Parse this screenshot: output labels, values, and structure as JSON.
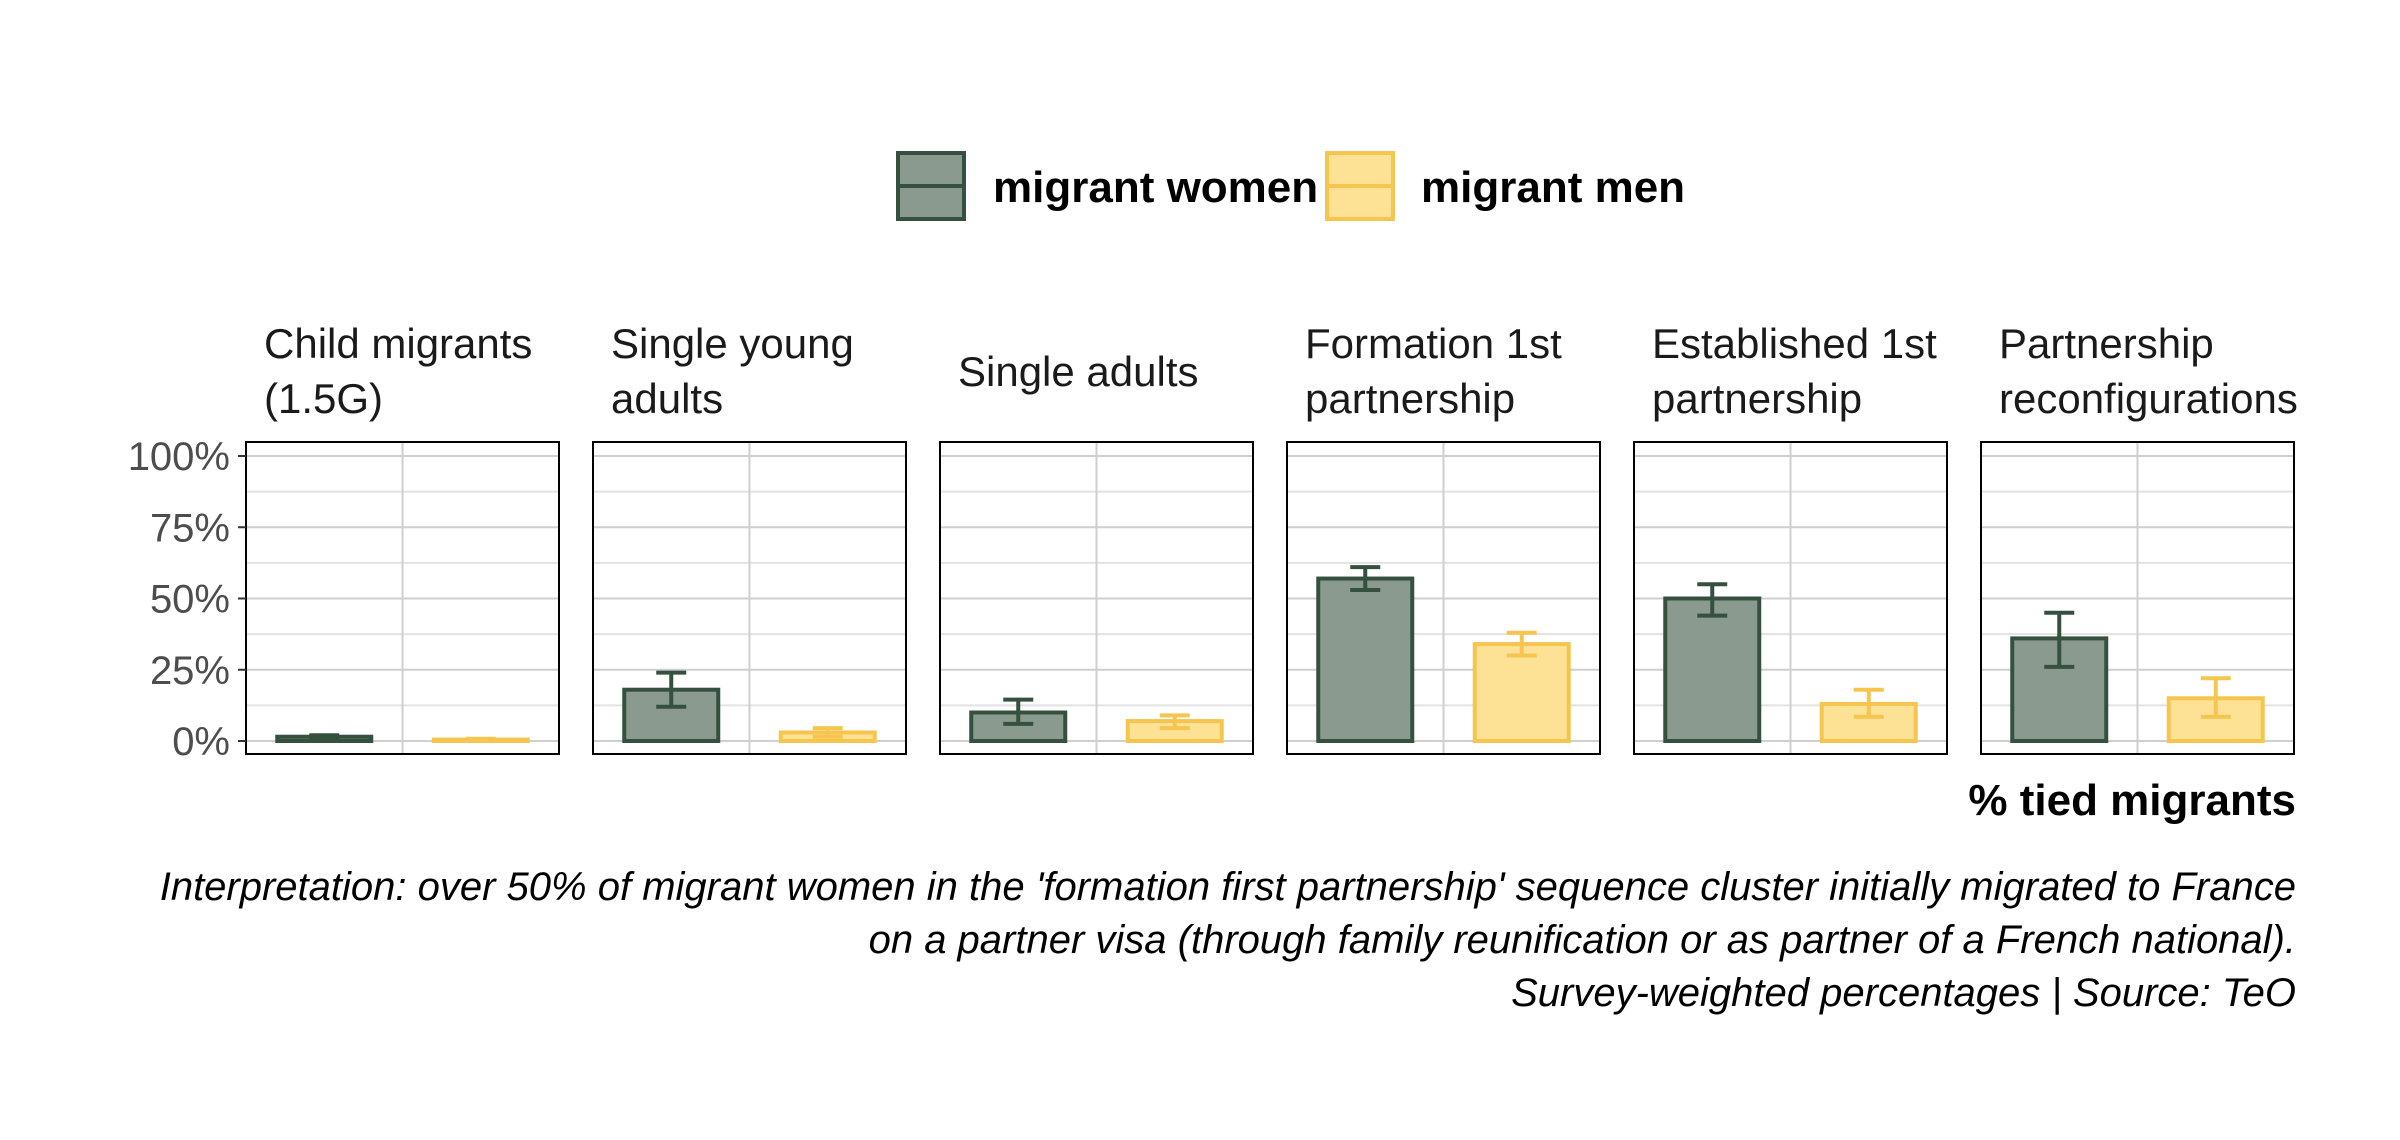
{
  "chart_data": {
    "type": "bar",
    "x_axis_title": "% tied migrants",
    "ylim": [
      0,
      100
    ],
    "y_ticks": [
      0,
      25,
      50,
      75,
      100
    ],
    "y_tick_labels": [
      "0%",
      "25%",
      "50%",
      "75%",
      "100%"
    ],
    "grid": true,
    "legend_position": "top",
    "series": [
      {
        "name": "migrant women",
        "fill": "#8a9a8e",
        "stroke": "#35503f"
      },
      {
        "name": "migrant men",
        "fill": "#fde194",
        "stroke": "#f6c54f"
      }
    ],
    "panels": [
      {
        "title_lines": [
          "Child migrants",
          "(1.5G)"
        ],
        "values": [
          {
            "value": 1.5,
            "ci": [
              1.0,
              2.0
            ]
          },
          {
            "value": 0.5,
            "ci": [
              0.2,
              0.8
            ]
          }
        ]
      },
      {
        "title_lines": [
          "Single young",
          "adults"
        ],
        "values": [
          {
            "value": 18,
            "ci": [
              12,
              24
            ]
          },
          {
            "value": 3,
            "ci": [
              1.5,
              4.5
            ]
          }
        ]
      },
      {
        "title_lines": [
          "Single adults"
        ],
        "values": [
          {
            "value": 10,
            "ci": [
              6,
              14.5
            ]
          },
          {
            "value": 7,
            "ci": [
              4.5,
              9
            ]
          }
        ]
      },
      {
        "title_lines": [
          "Formation 1st",
          "partnership"
        ],
        "values": [
          {
            "value": 57,
            "ci": [
              53,
              61
            ]
          },
          {
            "value": 34,
            "ci": [
              30,
              38
            ]
          }
        ]
      },
      {
        "title_lines": [
          "Established 1st",
          "partnership"
        ],
        "values": [
          {
            "value": 50,
            "ci": [
              44,
              55
            ]
          },
          {
            "value": 13,
            "ci": [
              8.5,
              18
            ]
          }
        ]
      },
      {
        "title_lines": [
          "Partnership",
          "reconfigurations"
        ],
        "values": [
          {
            "value": 36,
            "ci": [
              26,
              45
            ]
          },
          {
            "value": 15,
            "ci": [
              8.5,
              22
            ]
          }
        ]
      }
    ]
  },
  "caption_lines": [
    "Interpretation: over 50% of migrant women in the 'formation first partnership' sequence cluster initially migrated to France",
    "on a partner visa (through family reunification or as partner of a French national).",
    "Survey-weighted percentages | Source: TeO"
  ]
}
